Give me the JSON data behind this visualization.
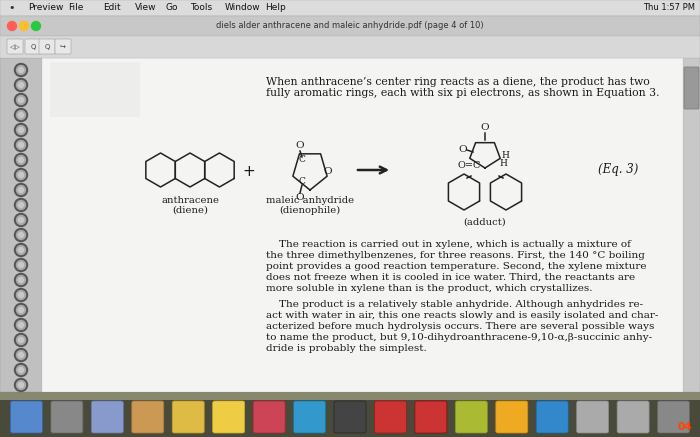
{
  "window_bg": "#b0b0b0",
  "menubar_bg": "#dcdcdc",
  "titlebar_bg": "#c8c8c8",
  "page_bg": "#f2f2f0",
  "text_color": "#1a1a1a",
  "title_text": "diels alder anthracene and maleic anhydride.pdf (page 4 of 10)",
  "menu_items": [
    "Preview",
    "File",
    "Edit",
    "View",
    "Go",
    "Tools",
    "Window",
    "Help"
  ],
  "para1_line1": "When anthracene’s center ring reacts as a diene, the product has two",
  "para1_line2": "fully aromatic rings, each with six pi electrons, as shown in Equation 3.",
  "para2_line1": "    The reaction is carried out in xylene, which is actually a mixture of",
  "para2_line2": "the three dimethylbenzenes, for three reasons. First, the 140 °C boiling",
  "para2_line3": "point provides a good reaction temperature. Second, the xylene mixture",
  "para2_line4": "does not freeze when it is cooled in ice water. Third, the reactants are",
  "para2_line5": "more soluble in xylene than is the product, which crystallizes.",
  "para3_line1": "    The product is a relatively stable anhydride. Although anhydrides re-",
  "para3_line2": "act with water in air, this one reacts slowly and is easily isolated and char-",
  "para3_line3": "acterized before much hydrolysis occurs. There are several possible ways",
  "para3_line4": "to name the product, but 9,10-dihydroanthracene-9,10-α,β-succinic anhy-",
  "para3_line5": "dride is probably the simplest.",
  "label_anthracene": "anthracene",
  "label_diene": "(diene)",
  "label_maleic": "maleic anhydride",
  "label_dienophile": "(dienophile)",
  "label_adduct": "(adduct)",
  "eq_label": "(Eq. 3)",
  "traffic_colors": [
    "#ff5f57",
    "#febc2e",
    "#28c840"
  ],
  "spiral_color": "#555555",
  "spiral_inner": "#888888",
  "dock_bg": "#3a3a3a"
}
